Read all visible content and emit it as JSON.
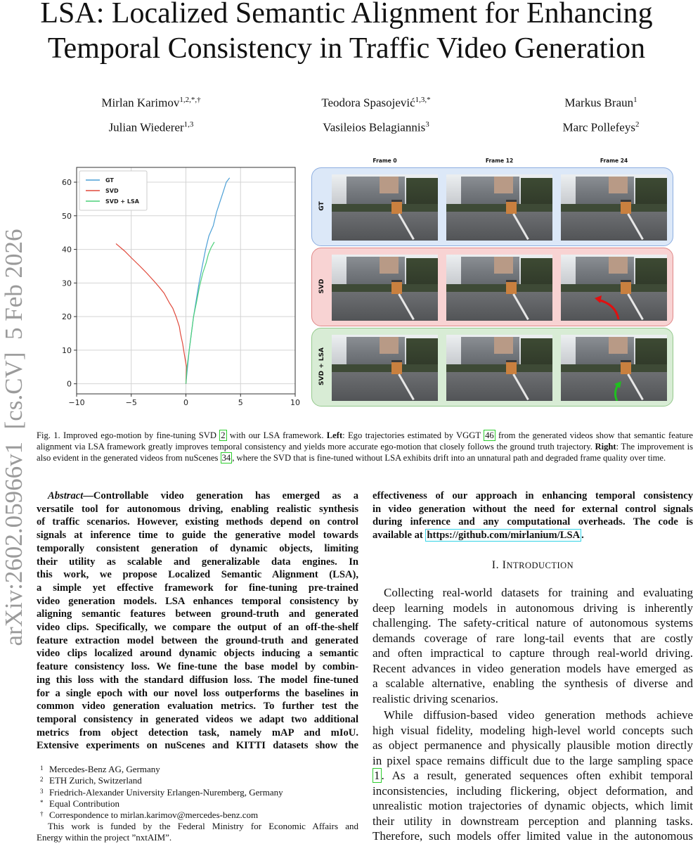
{
  "title": {
    "line1": "LSA: Localized Semantic Alignment for Enhancing",
    "line2": "Temporal Consistency in Traffic Video Generation"
  },
  "authors": [
    {
      "name": "Mirlan Karimov",
      "sup": "1,2,*,†"
    },
    {
      "name": "Teodora Spasojević",
      "sup": "1,3,*"
    },
    {
      "name": "Markus Braun",
      "sup": "1"
    },
    {
      "name": "Julian Wiederer",
      "sup": "1,3"
    },
    {
      "name": "Vasileios Belagiannis",
      "sup": "3"
    },
    {
      "name": "Marc Pollefeys",
      "sup": "2"
    }
  ],
  "arxiv_stamp": "arXiv:2602.05966v1  [cs.CV]  5 Feb 2026",
  "figure": {
    "chart_data": {
      "type": "line",
      "title": "",
      "xlabel": "",
      "ylabel": "",
      "xlim": [
        -10,
        10
      ],
      "ylim": [
        -3,
        64.4
      ],
      "xticks": [
        "−10",
        "−5",
        "0",
        "5",
        "10"
      ],
      "xtick_values": [
        -10,
        -5,
        0,
        5,
        10
      ],
      "yticks": [
        "0",
        "10",
        "20",
        "30",
        "40",
        "50",
        "60"
      ],
      "ytick_values": [
        0,
        10,
        20,
        30,
        40,
        50,
        60
      ],
      "grid": true,
      "legend": "top-left",
      "series": [
        {
          "name": "GT",
          "color": "#4c9fd6",
          "x": [
            0,
            0.15,
            0.3,
            0.5,
            0.7,
            0.95,
            1.2,
            1.5,
            1.8,
            2.1,
            2.5,
            2.8,
            3.1,
            3.4,
            3.7,
            4.0
          ],
          "y": [
            0,
            5,
            10,
            15,
            20,
            25,
            30,
            35,
            40,
            44,
            47,
            51,
            54,
            57,
            60,
            61.3
          ]
        },
        {
          "name": "SVD",
          "color": "#e0493b",
          "x": [
            0,
            0.05,
            -0.1,
            -0.3,
            -0.5,
            -0.6,
            -0.9,
            -1.2,
            -1.5,
            -2.0,
            -2.5,
            -2.9,
            -3.6,
            -4.2,
            -5.0,
            -5.6,
            -6.4
          ],
          "y": [
            0,
            5,
            8,
            12,
            15,
            17,
            20,
            22.5,
            24,
            27,
            29,
            30.5,
            33,
            35,
            37.5,
            39.5,
            41.7
          ]
        },
        {
          "name": "SVD + LSA",
          "color": "#4cd07a",
          "x": [
            0,
            0.1,
            0.3,
            0.5,
            0.7,
            0.95,
            1.25,
            1.55,
            1.85,
            2.05,
            2.3,
            2.6
          ],
          "y": [
            0,
            5,
            10,
            15,
            20,
            24,
            29,
            33,
            36,
            38.5,
            40.5,
            42.2
          ]
        }
      ]
    },
    "column_headers": [
      "Frame 0",
      "Frame 12",
      "Frame 24"
    ],
    "rows": [
      {
        "label": "GT",
        "fill": "#dce8f8",
        "border": "#8daee0"
      },
      {
        "label": "SVD",
        "fill": "#f8d3d3",
        "border": "#e08888"
      },
      {
        "label": "SVD + LSA",
        "fill": "#d8ecd5",
        "border": "#95c98d"
      }
    ],
    "arrow_colors": {
      "svd": "#e01010",
      "lsa": "#20c020"
    }
  },
  "caption": {
    "s0": "Fig. 1.  Improved ego-motion by fine-tuning SVD ",
    "r0": "2",
    "s1": " with our LSA framework. ",
    "b0": "Left",
    "s2": ": Ego trajectories estimated by VGGT ",
    "r1": "46",
    "s3": " from the generated videos show that semantic feature alignment via LSA framework greatly improves temporal consistency and yields more accurate ego-motion that closely follows the ground truth trajectory. ",
    "b1": "Right",
    "s4": ": The improvement is also evident in the generated videos from nuScenes ",
    "r2": "34",
    "s5": ", where the SVD that is fine-tuned without LSA exhibits drift into an unnatural path and degraded frame quality over time."
  },
  "abstract": {
    "label": "Abstract",
    "dash": "—",
    "lines": [
      "Controllable video generation has emerged as a",
      "versatile tool for autonomous driving, enabling realistic synthesis",
      "of traffic scenarios. However, existing methods depend on control",
      "signals at inference time to guide the generative model towards",
      "temporally consistent generation of dynamic objects, limiting",
      "their utility as scalable and generalizable data engines. In",
      "this work, we propose Localized Semantic Alignment (LSA),",
      "a simple yet effective framework for fine-tuning pre-trained",
      "video generation models. LSA enhances temporal consistency by",
      "aligning semantic features between ground-truth and generated",
      "video clips. Specifically, we compare the output of an off-the-shelf",
      "feature extraction model between the ground-truth and generated",
      "video clips localized around dynamic objects inducing a semantic",
      "feature consistency loss. We fine-tune the base model by combin-",
      "ing this loss with the standard diffusion loss. The model fine-tuned",
      "for a single epoch with our novel loss outperforms the baselines in",
      "common video generation evaluation metrics. To further test the",
      "temporal consistency in generated videos we adapt two additional",
      "metrics from object detection task, namely mAP and mIoU.",
      "Extensive experiments on nuScenes and KITTI datasets show the"
    ],
    "cont_lines": [
      "effectiveness of our approach in enhancing temporal consistency",
      "in video generation without the need for external control signals",
      "during inference and any computational overheads. The code is"
    ],
    "cont_last_prefix": "available at ",
    "code_link": "https://github.com/mirlanium/LSA",
    "cont_last_suffix": "."
  },
  "footnotes": [
    {
      "mark": "1",
      "text": "Mercedes-Benz AG, Germany"
    },
    {
      "mark": "2",
      "text": "ETH Zurich, Switzerland"
    },
    {
      "mark": "3",
      "text": "Friedrich-Alexander University Erlangen-Nuremberg, Germany"
    },
    {
      "mark": "*",
      "text": "Equal Contribution"
    },
    {
      "mark": "†",
      "text": "Correspondence to mirlan.karimov@mercedes-benz.com"
    }
  ],
  "funding": {
    "line1": "This work is funded by the Federal Ministry for Economic Affairs and",
    "line2": "Energy within the project ”nxtAIM”."
  },
  "introduction": {
    "number": "I. ",
    "heading_first": "I",
    "heading_rest": "NTRODUCTION",
    "p1": [
      "Collecting real-world datasets for training and evaluating",
      "deep learning models in autonomous driving is inherently",
      "challenging. The safety-critical nature of autonomous systems",
      "demands coverage of rare long-tail events that are costly",
      "and often impractical to capture through real-world driving.",
      "Recent advances in video generation models have emerged as",
      "a scalable alternative, enabling the synthesis of diverse and",
      "realistic driving scenarios."
    ],
    "p2": [
      "While diffusion-based video generation methods achieve",
      "high visual fidelity, modeling high-level world concepts such",
      "as object permanence and physically plausible motion directly",
      "in pixel space remains difficult due to the large sampling space"
    ],
    "p2_ref": "1",
    "p2_ref_suffix": ". As a result, generated sequences often exhibit temporal",
    "p2_rest": [
      "inconsistencies, including flickering, object deformation, and",
      "unrealistic motion trajectories of dynamic objects, which limit",
      "their utility in downstream perception and planning tasks.",
      "Therefore, such models offer limited value in the autonomous"
    ]
  }
}
